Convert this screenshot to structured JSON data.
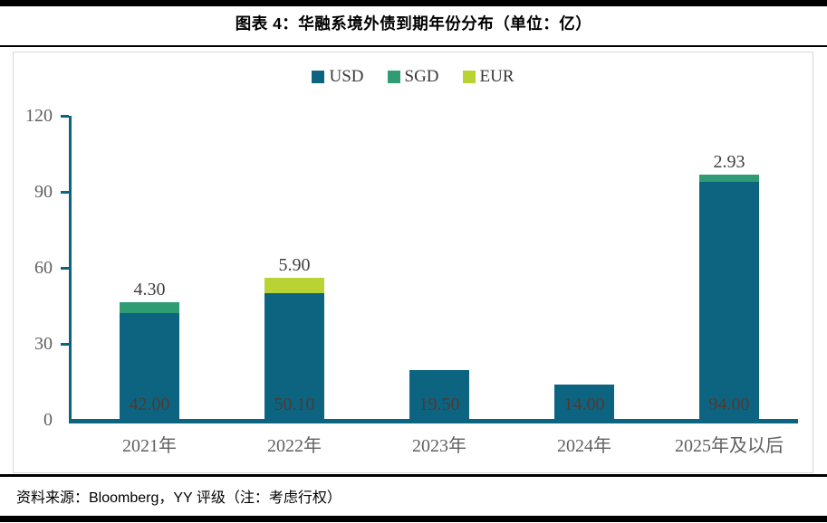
{
  "header": {
    "title": "图表 4：华融系境外债到期年份分布（单位：亿）"
  },
  "footer": {
    "source": "资料来源：Bloomberg，YY 评级（注：考虑行权）"
  },
  "colors": {
    "usd": "#0d6481",
    "sgd": "#2f9c74",
    "eur": "#b9d234",
    "axis": "#0d6481",
    "inside_label": "#4f3a32",
    "outside_label": "#3f3f3f",
    "tick_label": "#5f5f5f",
    "chart_border": "#d9d9d9"
  },
  "chart_data": {
    "type": "bar",
    "stacked": true,
    "title": "图表 4：华融系境外债到期年份分布（单位：亿）",
    "categories": [
      "2021年",
      "2022年",
      "2023年",
      "2024年",
      "2025年及以后"
    ],
    "series": [
      {
        "name": "USD",
        "color_key": "usd",
        "values": [
          42.0,
          50.1,
          19.5,
          14.0,
          94.0
        ]
      },
      {
        "name": "SGD",
        "color_key": "sgd",
        "values": [
          4.3,
          0,
          0,
          0,
          2.93
        ]
      },
      {
        "name": "EUR",
        "color_key": "eur",
        "values": [
          0,
          5.9,
          0,
          0,
          0
        ]
      }
    ],
    "inside_labels": [
      "42.00",
      "50.10",
      "19.50",
      "14.00",
      "94.00"
    ],
    "top_labels": [
      "4.30",
      "5.90",
      "",
      "",
      "2.93"
    ],
    "y_ticks": [
      0,
      30,
      60,
      90,
      120
    ],
    "ylim": [
      0,
      120
    ],
    "legend": [
      "USD",
      "SGD",
      "EUR"
    ],
    "legend_position": "top",
    "grid": false
  }
}
